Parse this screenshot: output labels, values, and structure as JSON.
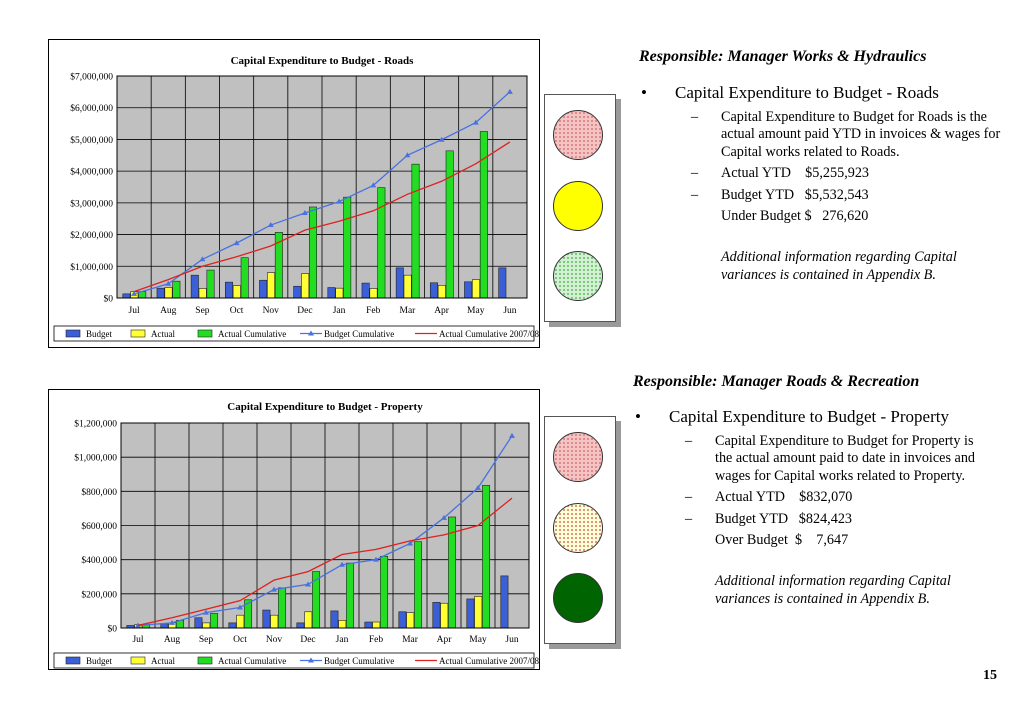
{
  "charts": [
    {
      "chart_data": {
        "type": "bar",
        "title": "Capital Expenditure to Budget - Roads",
        "categories": [
          "Jul",
          "Aug",
          "Sep",
          "Oct",
          "Nov",
          "Dec",
          "Jan",
          "Feb",
          "Mar",
          "Apr",
          "May",
          "Jun"
        ],
        "yticks": [
          "$0",
          "$1,000,000",
          "$2,000,000",
          "$3,000,000",
          "$4,000,000",
          "$5,000,000",
          "$6,000,000",
          "$7,000,000"
        ],
        "ylim": [
          0,
          7000000
        ],
        "grid": true,
        "legend_position": "bottom",
        "series": [
          {
            "name": "Budget",
            "kind": "bar",
            "color": "#3b5fd6",
            "values": [
              130000,
              310000,
              720000,
              500000,
              560000,
              370000,
              330000,
              470000,
              950000,
              480000,
              510000,
              950000
            ]
          },
          {
            "name": "Actual",
            "kind": "bar",
            "color": "#ffff33",
            "values": [
              200000,
              330000,
              300000,
              390000,
              800000,
              770000,
              310000,
              300000,
              720000,
              400000,
              580000,
              null
            ]
          },
          {
            "name": "Actual Cumulative",
            "kind": "bar",
            "color": "#22dd22",
            "values": [
              200000,
              530000,
              880000,
              1270000,
              2070000,
              2870000,
              3180000,
              3480000,
              4220000,
              4640000,
              5250000,
              null
            ]
          },
          {
            "name": "Budget Cumulative",
            "kind": "line",
            "color": "#4a72e0",
            "marker": "triangle",
            "values": [
              130000,
              450000,
              1220000,
              1730000,
              2300000,
              2680000,
              3040000,
              3550000,
              4500000,
              4990000,
              5530000,
              6500000
            ]
          },
          {
            "name": "Actual Cumulative 2007/08",
            "kind": "line",
            "color": "#dd2222",
            "values": [
              200000,
              580000,
              1000000,
              1300000,
              1640000,
              2140000,
              2420000,
              2750000,
              3270000,
              3680000,
              4230000,
              4920000
            ]
          }
        ]
      }
    },
    {
      "chart_data": {
        "type": "bar",
        "title": "Capital Expenditure to Budget - Property",
        "categories": [
          "Jul",
          "Aug",
          "Sep",
          "Oct",
          "Nov",
          "Dec",
          "Jan",
          "Feb",
          "Mar",
          "Apr",
          "May",
          "Jun"
        ],
        "yticks": [
          "$0",
          "$200,000",
          "$400,000",
          "$600,000",
          "$800,000",
          "$1,000,000",
          "$1,200,000"
        ],
        "ylim": [
          0,
          1200000
        ],
        "grid": true,
        "legend_position": "bottom",
        "series": [
          {
            "name": "Budget",
            "kind": "bar",
            "color": "#3b5fd6",
            "values": [
              15000,
              25000,
              60000,
              30000,
              105000,
              30000,
              100000,
              35000,
              95000,
              150000,
              170000,
              305000
            ]
          },
          {
            "name": "Actual",
            "kind": "bar",
            "color": "#ffff33",
            "values": [
              20000,
              30000,
              30000,
              75000,
              75000,
              95000,
              45000,
              35000,
              90000,
              145000,
              185000,
              null
            ]
          },
          {
            "name": "Actual Cumulative",
            "kind": "bar",
            "color": "#22dd22",
            "values": [
              20000,
              45000,
              85000,
              165000,
              235000,
              330000,
              380000,
              420000,
              505000,
              650000,
              835000,
              null
            ]
          },
          {
            "name": "Budget Cumulative",
            "kind": "line",
            "color": "#4a72e0",
            "marker": "triangle",
            "values": [
              15000,
              30000,
              90000,
              120000,
              225000,
              255000,
              370000,
              400000,
              495000,
              645000,
              820000,
              1125000
            ]
          },
          {
            "name": "Actual Cumulative 2007/08",
            "kind": "line",
            "color": "#dd2222",
            "values": [
              15000,
              60000,
              110000,
              160000,
              280000,
              330000,
              430000,
              460000,
              510000,
              545000,
              600000,
              760000
            ]
          }
        ]
      }
    }
  ],
  "lights": [
    {
      "lamps": [
        {
          "name": "red",
          "lit": false,
          "color": "#f4c4c4"
        },
        {
          "name": "amber",
          "lit": true,
          "color": "#ffff00"
        },
        {
          "name": "green",
          "lit": false,
          "color": "#d2f0d2"
        }
      ]
    },
    {
      "lamps": [
        {
          "name": "red",
          "lit": false,
          "color": "#f4c4c4"
        },
        {
          "name": "amber",
          "lit": false,
          "color": "#ffffd2"
        },
        {
          "name": "green",
          "lit": true,
          "color": "#006400"
        }
      ]
    }
  ],
  "roads": {
    "responsible_label": "Responsible",
    "responsible_value": ": Manager Works & Hydraulics",
    "bullet_symbol": "•",
    "heading": "Capital Expenditure to Budget - Roads",
    "dash": "–",
    "description": "Capital Expenditure to Budget for Roads is the actual amount paid YTD in invoices & wages for Capital works related to Roads.",
    "actual_line": "Actual YTD    $5,255,923",
    "budget_line": "Budget YTD   $5,532,543",
    "variance_line": "Under Budget $   276,620",
    "note": "Additional information regarding Capital variances is contained in Appendix B."
  },
  "property": {
    "responsible_label": "Responsible",
    "responsible_value": ": Manager Roads & Recreation",
    "bullet_symbol": "•",
    "heading": "Capital Expenditure to Budget - Property",
    "dash": "–",
    "description": "Capital Expenditure to Budget for Property is the actual amount paid to date in invoices and wages for Capital works related to Property.",
    "actual_line": "Actual YTD    $832,070",
    "budget_line": "Budget YTD   $824,423",
    "variance_line": "Over Budget  $    7,647",
    "note": "Additional information regarding Capital variances is contained in Appendix B."
  },
  "page_number": "15"
}
